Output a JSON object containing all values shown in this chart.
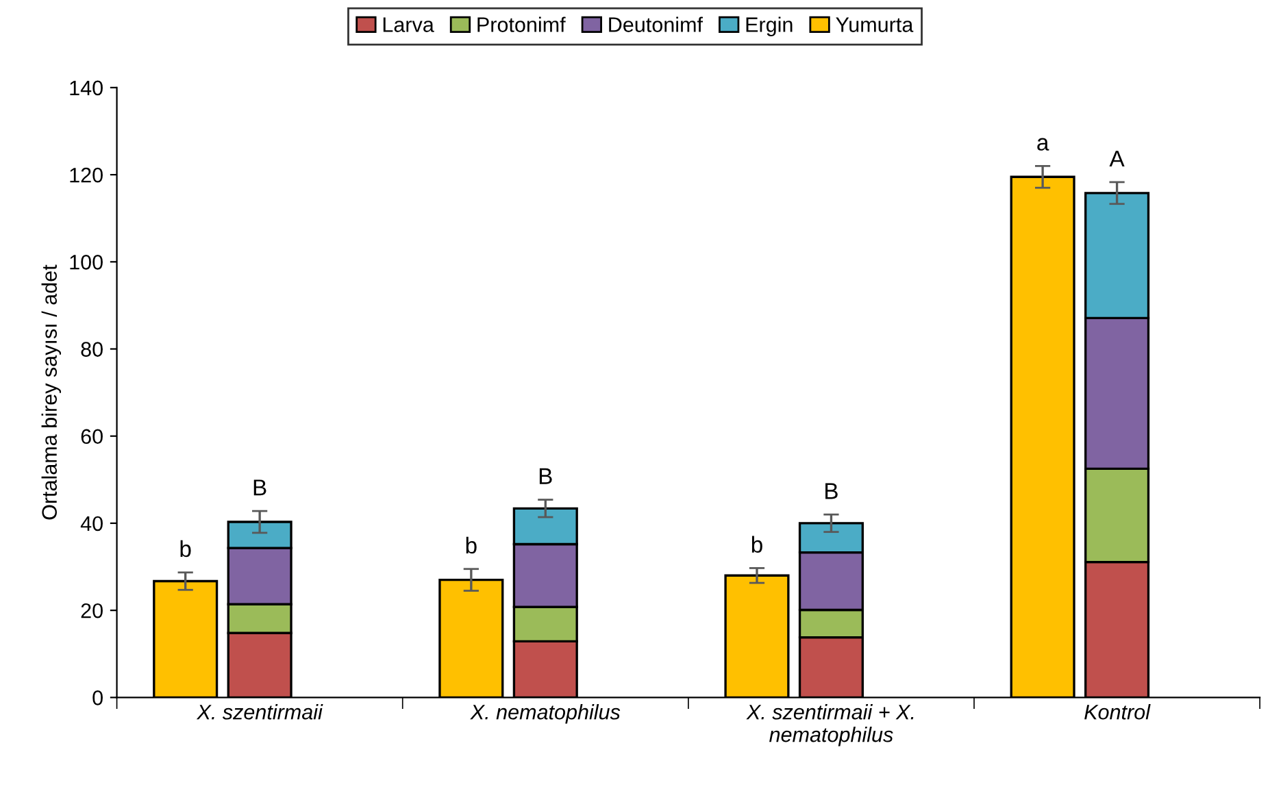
{
  "chart_data": [
    {
      "type": "bar",
      "ylabel": "Ortalama birey sayısı / adet",
      "categories": [
        "X. szentirmaii",
        "X. nematophilus",
        "X. szentirmaii + X. nematophilus",
        "Kontrol"
      ],
      "stacked": true,
      "series": [
        {
          "name": "Larva",
          "color": "#c0504d",
          "values": [
            14.8,
            12.9,
            13.8,
            31.1
          ]
        },
        {
          "name": "Protonimf",
          "color": "#9bbb59",
          "values": [
            6.6,
            7.9,
            6.3,
            21.4
          ]
        },
        {
          "name": "Deutonimf",
          "color": "#8064a2",
          "values": [
            12.9,
            14.4,
            13.2,
            34.6
          ]
        },
        {
          "name": "Ergin",
          "color": "#4bacc6",
          "values": [
            6.0,
            8.2,
            6.7,
            28.7
          ],
          "errors": [
            2.5,
            2.0,
            2.0,
            2.5
          ],
          "value_labels": [
            "B",
            "B",
            "B",
            "A"
          ]
        }
      ],
      "ylim": [
        0,
        140
      ],
      "yticks": [
        0,
        20,
        40,
        60,
        80,
        100,
        120,
        140
      ],
      "grid": false,
      "legend": "top"
    },
    {
      "type": "bar",
      "categories": [
        null,
        null,
        null,
        null
      ],
      "series": [
        {
          "name": "Yumurta",
          "color": "#ffc000",
          "values": [
            26.7,
            27.0,
            28.0,
            119.5
          ],
          "errors": [
            2.0,
            2.5,
            1.7,
            2.5
          ],
          "value_labels": [
            "b",
            "b",
            "b",
            "a"
          ]
        }
      ],
      "ylim": [
        0,
        140
      ],
      "tick_labels": false,
      "grid": false,
      "legend": "top"
    }
  ]
}
